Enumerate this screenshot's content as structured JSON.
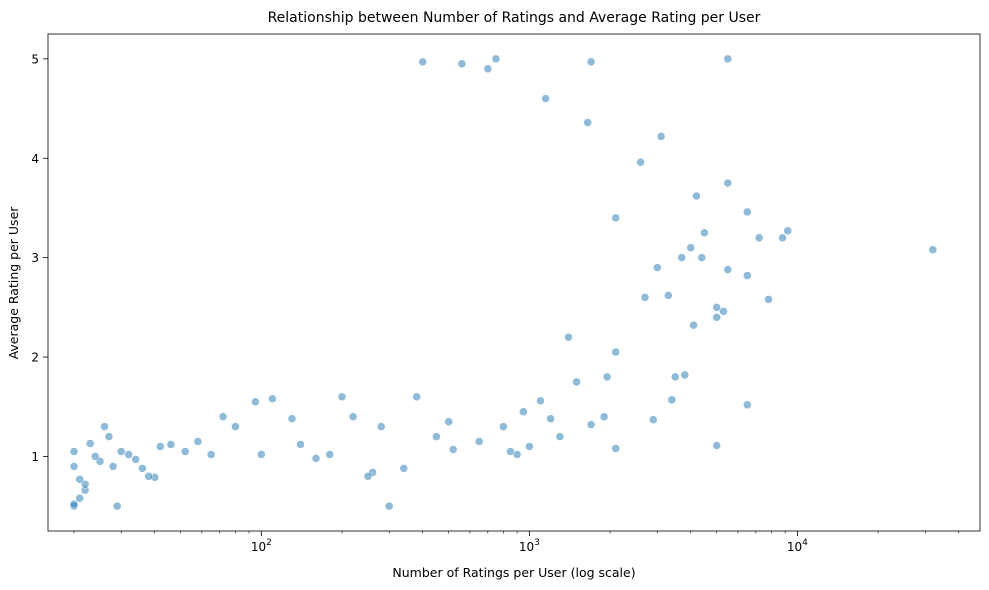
{
  "chart_data": {
    "type": "scatter",
    "title": "Relationship between Number of Ratings and Average Rating per User",
    "xlabel": "Number of Ratings per User (log scale)",
    "ylabel": "Average Rating per User",
    "x_scale": "log",
    "xlim": [
      16,
      48000
    ],
    "ylim": [
      0.25,
      5.25
    ],
    "x_ticks": [
      {
        "value": 100,
        "base": "10",
        "exp": "2"
      },
      {
        "value": 1000,
        "base": "10",
        "exp": "3"
      },
      {
        "value": 10000,
        "base": "10",
        "exp": "4"
      }
    ],
    "y_ticks": [
      {
        "value": 1,
        "label": "1"
      },
      {
        "value": 2,
        "label": "2"
      },
      {
        "value": 3,
        "label": "3"
      },
      {
        "value": 4,
        "label": "4"
      },
      {
        "value": 5,
        "label": "5"
      }
    ],
    "grid": false,
    "point_color": "#1f77b4",
    "point_alpha": 0.5,
    "series": [
      {
        "points": [
          [
            32000,
            3.08
          ],
          [
            9200,
            3.27
          ],
          [
            8800,
            3.2
          ],
          [
            7800,
            2.58
          ],
          [
            7200,
            3.2
          ],
          [
            6500,
            3.46
          ],
          [
            6500,
            2.82
          ],
          [
            6500,
            1.52
          ],
          [
            5500,
            5.0
          ],
          [
            5500,
            3.75
          ],
          [
            5500,
            2.88
          ],
          [
            5300,
            2.46
          ],
          [
            5000,
            2.5
          ],
          [
            5000,
            1.11
          ],
          [
            5000,
            2.4
          ],
          [
            4500,
            3.25
          ],
          [
            4400,
            3.0
          ],
          [
            4200,
            3.62
          ],
          [
            4100,
            2.32
          ],
          [
            4000,
            3.1
          ],
          [
            3800,
            1.82
          ],
          [
            3700,
            3.0
          ],
          [
            3500,
            1.8
          ],
          [
            3400,
            1.57
          ],
          [
            3300,
            2.62
          ],
          [
            3100,
            4.22
          ],
          [
            3000,
            2.9
          ],
          [
            2900,
            1.37
          ],
          [
            2700,
            2.6
          ],
          [
            2600,
            3.96
          ],
          [
            2100,
            2.05
          ],
          [
            2100,
            1.08
          ],
          [
            2100,
            3.4
          ],
          [
            1950,
            1.8
          ],
          [
            1900,
            1.4
          ],
          [
            1700,
            4.97
          ],
          [
            1700,
            1.32
          ],
          [
            1650,
            4.36
          ],
          [
            1500,
            1.75
          ],
          [
            1400,
            2.2
          ],
          [
            1300,
            1.2
          ],
          [
            1200,
            1.38
          ],
          [
            1150,
            4.6
          ],
          [
            1100,
            1.56
          ],
          [
            1000,
            1.1
          ],
          [
            950,
            1.45
          ],
          [
            900,
            1.02
          ],
          [
            850,
            1.05
          ],
          [
            800,
            1.3
          ],
          [
            750,
            5.0
          ],
          [
            700,
            4.9
          ],
          [
            650,
            1.15
          ],
          [
            560,
            4.95
          ],
          [
            520,
            1.07
          ],
          [
            500,
            1.35
          ],
          [
            450,
            1.2
          ],
          [
            400,
            4.97
          ],
          [
            380,
            1.6
          ],
          [
            340,
            0.88
          ],
          [
            300,
            0.5
          ],
          [
            280,
            1.3
          ],
          [
            260,
            0.84
          ],
          [
            250,
            0.8
          ],
          [
            220,
            1.4
          ],
          [
            200,
            1.6
          ],
          [
            180,
            1.02
          ],
          [
            160,
            0.98
          ],
          [
            140,
            1.12
          ],
          [
            130,
            1.38
          ],
          [
            110,
            1.58
          ],
          [
            100,
            1.02
          ],
          [
            95,
            1.55
          ],
          [
            80,
            1.3
          ],
          [
            72,
            1.4
          ],
          [
            65,
            1.02
          ],
          [
            58,
            1.15
          ],
          [
            52,
            1.05
          ],
          [
            46,
            1.12
          ],
          [
            42,
            1.1
          ],
          [
            40,
            0.79
          ],
          [
            38,
            0.8
          ],
          [
            36,
            0.88
          ],
          [
            34,
            0.97
          ],
          [
            32,
            1.02
          ],
          [
            30,
            1.05
          ],
          [
            29,
            0.5
          ],
          [
            28,
            0.9
          ],
          [
            27,
            1.2
          ],
          [
            26,
            1.3
          ],
          [
            25,
            0.95
          ],
          [
            24,
            1.0
          ],
          [
            23,
            1.13
          ],
          [
            22,
            0.66
          ],
          [
            22,
            0.72
          ],
          [
            21,
            0.58
          ],
          [
            21,
            0.77
          ],
          [
            20,
            0.5
          ],
          [
            20,
            0.52
          ],
          [
            20,
            0.9
          ],
          [
            20,
            1.05
          ]
        ]
      }
    ]
  }
}
